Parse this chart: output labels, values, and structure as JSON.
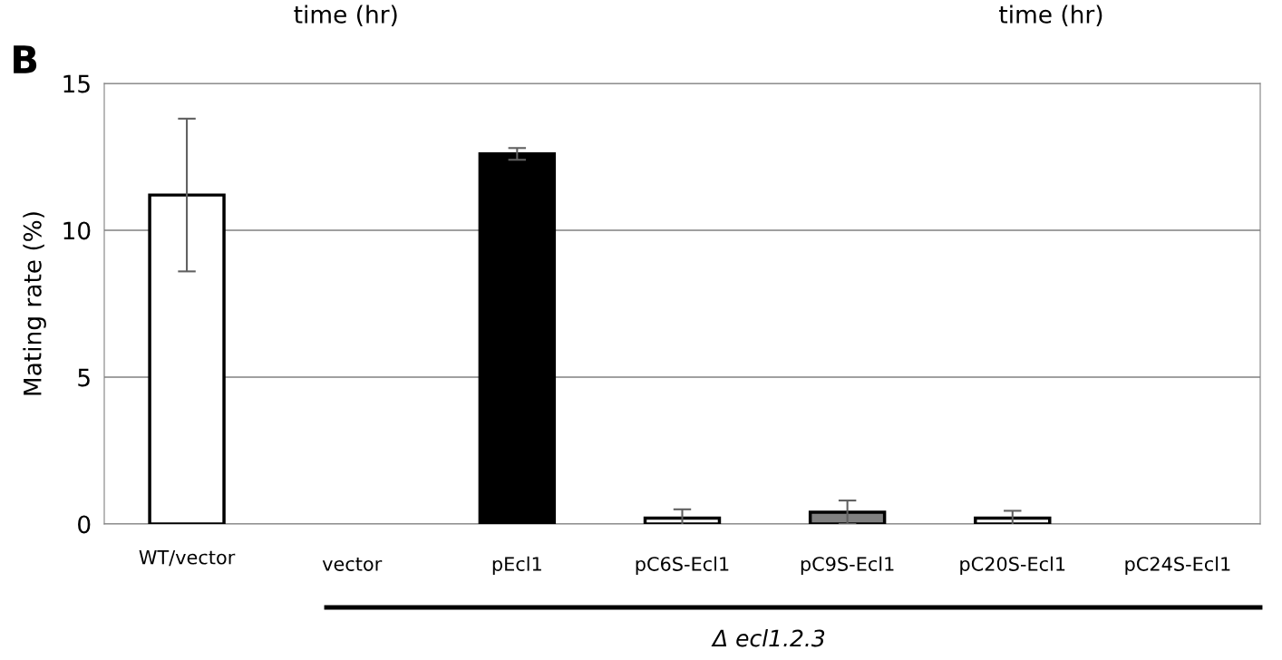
{
  "chart_data": {
    "type": "bar",
    "ylabel": "Mating rate (%)",
    "categories": [
      "WT/vector",
      "vector",
      "pEcl1",
      "pC6S-Ecl1",
      "pC9S-Ecl1",
      "pC20S-Ecl1",
      "pC24S-Ecl1"
    ],
    "values": [
      11.2,
      0,
      12.6,
      0.2,
      0.4,
      0.2,
      0
    ],
    "errors": [
      2.6,
      null,
      0.2,
      0.3,
      0.4,
      0.25,
      null
    ],
    "colors": [
      "#ffffff",
      "#ffffff",
      "#000000",
      "#ffffff",
      "#808080",
      "#ffffff",
      "#ffffff"
    ],
    "ylim": [
      0,
      15
    ],
    "yticks": [
      0,
      5,
      10,
      15
    ],
    "grid": "y",
    "legend": false,
    "annotations": [
      "time (hr)",
      "time (hr)",
      "B",
      "Δ ecl1.2.3"
    ]
  }
}
